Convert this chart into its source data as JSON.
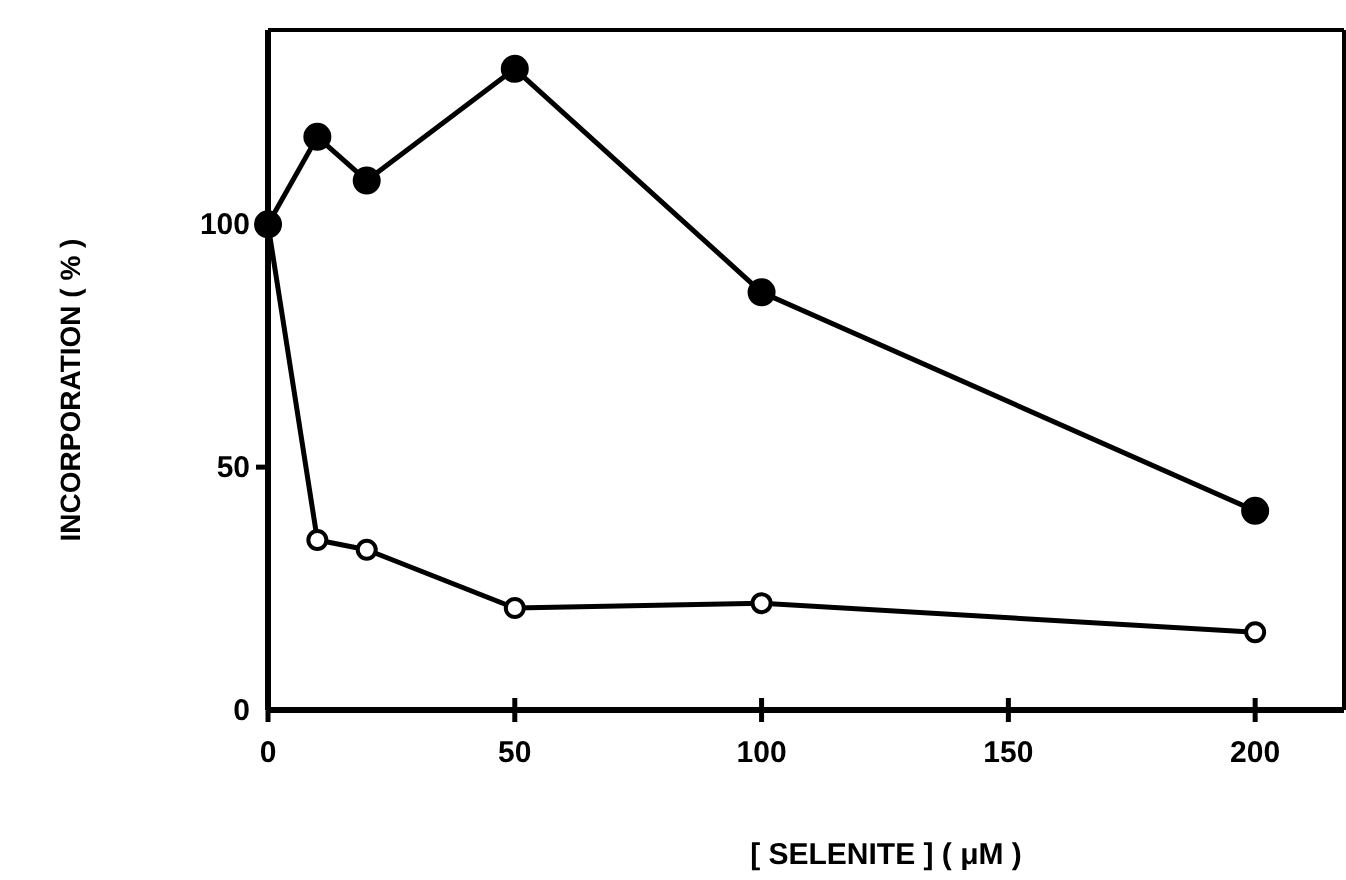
{
  "chart_data": {
    "type": "line",
    "xlabel": "[ SELENITE ] ( μM )",
    "ylabel": "INCORPORATION ( % )",
    "x": [
      0,
      10,
      20,
      50,
      100,
      200
    ],
    "xlim": [
      0,
      218
    ],
    "ylim": [
      0,
      140
    ],
    "xticks": [
      0,
      50,
      100,
      150,
      200
    ],
    "yticks": [
      0,
      50,
      100
    ],
    "marker": "circle",
    "grid": false,
    "series": [
      {
        "color": "#000000",
        "values": [
          100,
          118,
          109,
          132,
          86,
          41
        ]
      },
      {
        "color": "#ffffff",
        "values": [
          100,
          35,
          33,
          21,
          22,
          16
        ]
      }
    ]
  }
}
